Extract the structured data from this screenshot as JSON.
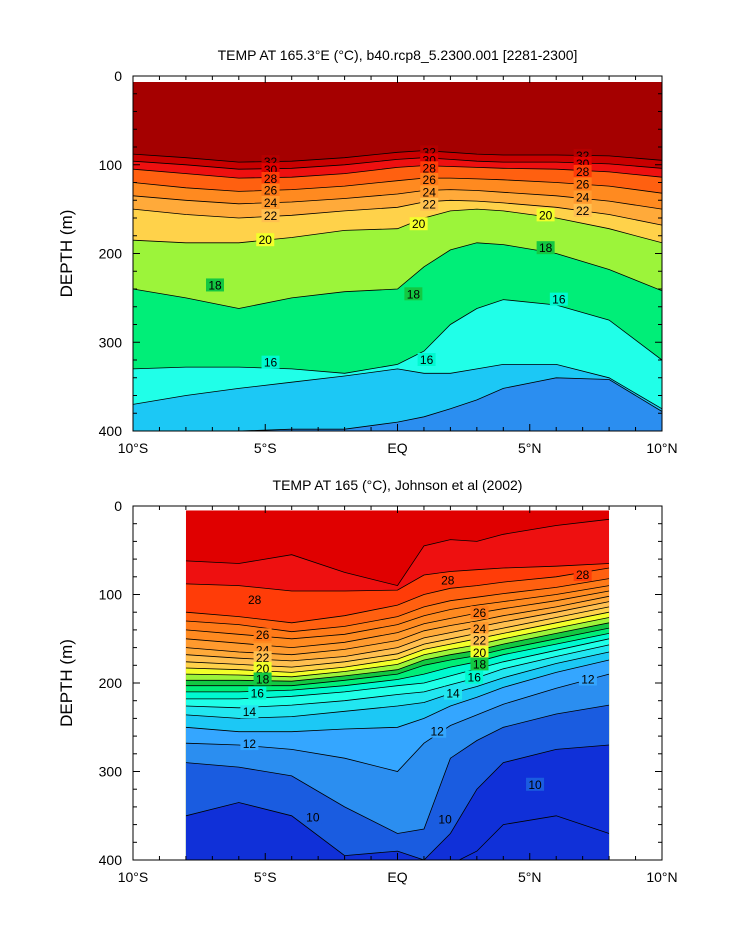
{
  "chart_data": [
    {
      "type": "contour",
      "title": "TEMP AT 165.3°E (°C), b40.rcp8_5.2300.001 [2281-2300]",
      "xlabel": "",
      "ylabel": "DEPTH (m)",
      "xlim": [
        -10,
        10
      ],
      "ylim": [
        400,
        0
      ],
      "x_ticks": [
        {
          "value": -10,
          "label": "10°S"
        },
        {
          "value": -5,
          "label": "5°S"
        },
        {
          "value": 0,
          "label": "EQ"
        },
        {
          "value": 5,
          "label": "5°N"
        },
        {
          "value": 10,
          "label": "10°N"
        }
      ],
      "y_ticks": [
        {
          "value": 0,
          "label": "0"
        },
        {
          "value": 100,
          "label": "100"
        },
        {
          "value": 200,
          "label": "200"
        },
        {
          "value": 300,
          "label": "300"
        },
        {
          "value": 400,
          "label": "400"
        }
      ],
      "data_x_range": [
        -10,
        10
      ],
      "top_fill_level": 33,
      "x": [
        -10,
        -8,
        -6,
        -4,
        -2,
        0,
        1,
        2,
        3,
        4,
        6,
        8,
        10
      ],
      "isotherms": [
        {
          "level": 32,
          "depths": [
            88,
            92,
            97,
            96,
            92,
            86,
            84,
            86,
            88,
            89,
            89,
            90,
            95
          ]
        },
        {
          "level": 30,
          "depths": [
            96,
            100,
            105,
            104,
            100,
            94,
            92,
            94,
            96,
            97,
            97,
            99,
            104
          ]
        },
        {
          "level": 28,
          "depths": [
            105,
            110,
            115,
            114,
            110,
            103,
            101,
            102,
            103,
            104,
            105,
            108,
            114
          ]
        },
        {
          "level": 26,
          "depths": [
            120,
            126,
            130,
            128,
            124,
            118,
            115,
            115,
            116,
            117,
            120,
            124,
            132
          ]
        },
        {
          "level": 24,
          "depths": [
            135,
            140,
            144,
            142,
            138,
            133,
            129,
            128,
            129,
            131,
            135,
            141,
            150
          ]
        },
        {
          "level": 22,
          "depths": [
            150,
            156,
            160,
            157,
            152,
            148,
            142,
            140,
            141,
            143,
            148,
            156,
            168
          ]
        },
        {
          "level": 20,
          "depths": [
            185,
            188,
            188,
            182,
            174,
            172,
            160,
            152,
            150,
            152,
            160,
            172,
            188
          ]
        },
        {
          "level": 18,
          "depths": [
            240,
            250,
            262,
            250,
            243,
            240,
            215,
            196,
            188,
            190,
            200,
            218,
            242
          ]
        },
        {
          "level": 16,
          "depths": [
            330,
            328,
            328,
            330,
            335,
            325,
            310,
            280,
            262,
            252,
            258,
            275,
            320
          ]
        },
        {
          "level": 14,
          "depths": [
            370,
            360,
            352,
            345,
            338,
            330,
            335,
            335,
            330,
            325,
            325,
            340,
            375
          ]
        },
        {
          "level": 12,
          "depths": [
            405,
            405,
            400,
            398,
            398,
            390,
            384,
            375,
            365,
            352,
            340,
            342,
            378
          ]
        }
      ],
      "labels": [
        {
          "x": -4.8,
          "depth": 97,
          "text": "32"
        },
        {
          "x": 1.2,
          "depth": 86,
          "text": "32"
        },
        {
          "x": 7.0,
          "depth": 90,
          "text": "32"
        },
        {
          "x": -4.8,
          "depth": 106,
          "text": "30"
        },
        {
          "x": 1.2,
          "depth": 95,
          "text": "30"
        },
        {
          "x": 7.0,
          "depth": 99,
          "text": "30"
        },
        {
          "x": -4.8,
          "depth": 116,
          "text": "28"
        },
        {
          "x": 1.2,
          "depth": 104,
          "text": "28"
        },
        {
          "x": 7.0,
          "depth": 108,
          "text": "28"
        },
        {
          "x": -4.8,
          "depth": 129,
          "text": "26"
        },
        {
          "x": 1.2,
          "depth": 117,
          "text": "26"
        },
        {
          "x": 7.0,
          "depth": 122,
          "text": "26"
        },
        {
          "x": -4.8,
          "depth": 143,
          "text": "24"
        },
        {
          "x": 1.2,
          "depth": 131,
          "text": "24"
        },
        {
          "x": 7.0,
          "depth": 137,
          "text": "24"
        },
        {
          "x": -4.8,
          "depth": 158,
          "text": "22"
        },
        {
          "x": 1.2,
          "depth": 145,
          "text": "22"
        },
        {
          "x": 7.0,
          "depth": 152,
          "text": "22"
        },
        {
          "x": -5.0,
          "depth": 185,
          "text": "20"
        },
        {
          "x": 0.8,
          "depth": 167,
          "text": "20"
        },
        {
          "x": 5.6,
          "depth": 157,
          "text": "20"
        },
        {
          "x": -6.9,
          "depth": 236,
          "text": "18"
        },
        {
          "x": 0.6,
          "depth": 246,
          "text": "18"
        },
        {
          "x": 5.6,
          "depth": 194,
          "text": "18"
        },
        {
          "x": -4.8,
          "depth": 323,
          "text": "16"
        },
        {
          "x": 1.1,
          "depth": 320,
          "text": "16"
        },
        {
          "x": 6.1,
          "depth": 252,
          "text": "16"
        }
      ]
    },
    {
      "type": "contour",
      "title": "TEMP AT 165 (°C), Johnson et al (2002)",
      "xlabel": "",
      "ylabel": "DEPTH (m)",
      "xlim": [
        -10,
        10
      ],
      "ylim": [
        400,
        0
      ],
      "x_ticks": [
        {
          "value": -10,
          "label": "10°S"
        },
        {
          "value": -5,
          "label": "5°S"
        },
        {
          "value": 0,
          "label": "EQ"
        },
        {
          "value": 5,
          "label": "5°N"
        },
        {
          "value": 10,
          "label": "10°N"
        }
      ],
      "y_ticks": [
        {
          "value": 0,
          "label": "0"
        },
        {
          "value": 100,
          "label": "100"
        },
        {
          "value": 200,
          "label": "200"
        },
        {
          "value": 300,
          "label": "300"
        },
        {
          "value": 400,
          "label": "400"
        }
      ],
      "data_x_range": [
        -8,
        8
      ],
      "data_depth_range": [
        5,
        400
      ],
      "top_fill_level": 30,
      "x": [
        -8,
        -6,
        -4,
        -2,
        0,
        1,
        2,
        3,
        4,
        6,
        8
      ],
      "isotherms": [
        {
          "level": 30,
          "depths": [
            62,
            65,
            55,
            75,
            90,
            45,
            38,
            40,
            32,
            22,
            15
          ]
        },
        {
          "level": 29,
          "depths": [
            88,
            90,
            96,
            96,
            95,
            78,
            74,
            72,
            70,
            68,
            65
          ]
        },
        {
          "level": 28,
          "depths": [
            120,
            125,
            132,
            124,
            112,
            100,
            93,
            90,
            86,
            80,
            70
          ]
        },
        {
          "level": 27,
          "depths": [
            130,
            134,
            142,
            136,
            125,
            114,
            107,
            103,
            99,
            92,
            82
          ]
        },
        {
          "level": 26,
          "depths": [
            140,
            145,
            150,
            145,
            134,
            124,
            117,
            112,
            108,
            100,
            90
          ]
        },
        {
          "level": 25,
          "depths": [
            150,
            155,
            160,
            154,
            143,
            133,
            127,
            121,
            116,
            107,
            96
          ]
        },
        {
          "level": 24,
          "depths": [
            160,
            165,
            168,
            162,
            152,
            141,
            135,
            130,
            124,
            114,
            102
          ]
        },
        {
          "level": 23,
          "depths": [
            168,
            172,
            175,
            170,
            160,
            149,
            143,
            137,
            131,
            120,
            108
          ]
        },
        {
          "level": 22,
          "depths": [
            176,
            179,
            182,
            176,
            167,
            156,
            150,
            144,
            138,
            126,
            114
          ]
        },
        {
          "level": 21,
          "depths": [
            183,
            185,
            188,
            182,
            173,
            162,
            156,
            150,
            144,
            132,
            120
          ]
        },
        {
          "level": 20,
          "depths": [
            190,
            191,
            193,
            187,
            179,
            168,
            162,
            157,
            150,
            138,
            126
          ]
        },
        {
          "level": 19,
          "depths": [
            197,
            197,
            198,
            192,
            185,
            174,
            168,
            163,
            156,
            144,
            132
          ]
        },
        {
          "level": 18,
          "depths": [
            203,
            203,
            203,
            197,
            190,
            180,
            174,
            169,
            162,
            150,
            138
          ]
        },
        {
          "level": 17,
          "depths": [
            210,
            210,
            208,
            203,
            196,
            190,
            182,
            176,
            168,
            156,
            144
          ]
        },
        {
          "level": 16,
          "depths": [
            218,
            218,
            215,
            210,
            203,
            200,
            192,
            184,
            176,
            163,
            150
          ]
        },
        {
          "level": 15,
          "depths": [
            226,
            228,
            225,
            220,
            213,
            210,
            202,
            194,
            184,
            170,
            157
          ]
        },
        {
          "level": 14,
          "depths": [
            236,
            240,
            238,
            232,
            226,
            222,
            212,
            204,
            194,
            178,
            165
          ]
        },
        {
          "level": 13,
          "depths": [
            250,
            255,
            255,
            252,
            250,
            240,
            226,
            216,
            205,
            188,
            174
          ]
        },
        {
          "level": 12,
          "depths": [
            268,
            270,
            275,
            285,
            300,
            268,
            248,
            236,
            224,
            206,
            190
          ]
        },
        {
          "level": 11,
          "depths": [
            290,
            295,
            305,
            340,
            370,
            365,
            285,
            265,
            250,
            235,
            225
          ]
        },
        {
          "level": 10,
          "depths": [
            350,
            335,
            350,
            395,
            390,
            400,
            370,
            320,
            290,
            275,
            270
          ]
        },
        {
          "level": 9,
          "depths": [
            405,
            405,
            405,
            405,
            405,
            405,
            405,
            390,
            360,
            350,
            370
          ]
        }
      ],
      "labels": [
        {
          "x": -5.4,
          "depth": 106,
          "text": "28"
        },
        {
          "x": 1.9,
          "depth": 84,
          "text": "28"
        },
        {
          "x": 7.0,
          "depth": 78,
          "text": "28"
        },
        {
          "x": -5.1,
          "depth": 146,
          "text": "26"
        },
        {
          "x": 3.1,
          "depth": 121,
          "text": "26"
        },
        {
          "x": -5.1,
          "depth": 163,
          "text": "24"
        },
        {
          "x": 3.1,
          "depth": 139,
          "text": "24"
        },
        {
          "x": -5.1,
          "depth": 172,
          "text": "22"
        },
        {
          "x": 3.1,
          "depth": 152,
          "text": "22"
        },
        {
          "x": -5.1,
          "depth": 184,
          "text": "20"
        },
        {
          "x": 3.1,
          "depth": 166,
          "text": "20"
        },
        {
          "x": -5.1,
          "depth": 196,
          "text": "18"
        },
        {
          "x": 3.1,
          "depth": 179,
          "text": "18"
        },
        {
          "x": -5.3,
          "depth": 212,
          "text": "16"
        },
        {
          "x": 2.9,
          "depth": 194,
          "text": "16"
        },
        {
          "x": -5.6,
          "depth": 233,
          "text": "14"
        },
        {
          "x": 2.1,
          "depth": 212,
          "text": "14"
        },
        {
          "x": -5.6,
          "depth": 269,
          "text": "12"
        },
        {
          "x": 7.2,
          "depth": 196,
          "text": "12"
        },
        {
          "x": 1.5,
          "depth": 255,
          "text": "12"
        },
        {
          "x": -3.2,
          "depth": 352,
          "text": "10"
        },
        {
          "x": 1.8,
          "depth": 354,
          "text": "10"
        },
        {
          "x": 5.2,
          "depth": 315,
          "text": "10"
        }
      ]
    }
  ]
}
